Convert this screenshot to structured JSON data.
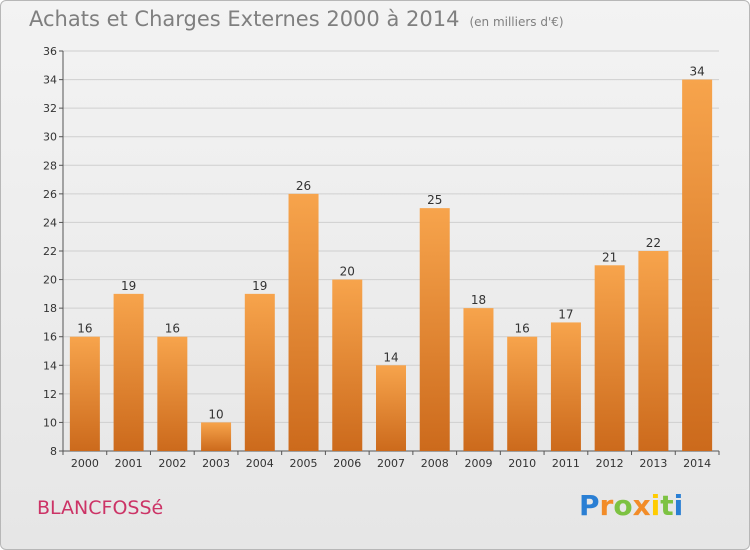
{
  "header": {
    "title": "Achats et Charges Externes 2000 à 2014",
    "unit": "(en milliers d'€)"
  },
  "footer": {
    "commune": "BLANCFOSSé",
    "logo_text": "Proxiti"
  },
  "colors": {
    "bar_light": "#f7a44c",
    "bar_dark": "#cc6a1c",
    "title": "#7f7f7f",
    "commune": "#cc3366",
    "grid": "#cfcfcf"
  },
  "chart_data": {
    "type": "bar",
    "title": "Achats et Charges Externes 2000 à 2014",
    "subtitle": "(en milliers d'€)",
    "categories": [
      "2000",
      "2001",
      "2002",
      "2003",
      "2004",
      "2005",
      "2006",
      "2007",
      "2008",
      "2009",
      "2010",
      "2011",
      "2012",
      "2013",
      "2014"
    ],
    "values": [
      16,
      19,
      16,
      10,
      19,
      26,
      20,
      14,
      25,
      18,
      16,
      17,
      21,
      22,
      34
    ],
    "ylim": [
      8,
      36
    ],
    "yticks": [
      8,
      10,
      12,
      14,
      16,
      18,
      20,
      22,
      24,
      26,
      28,
      30,
      32,
      34,
      36
    ],
    "grid": true,
    "data_labels": true
  }
}
